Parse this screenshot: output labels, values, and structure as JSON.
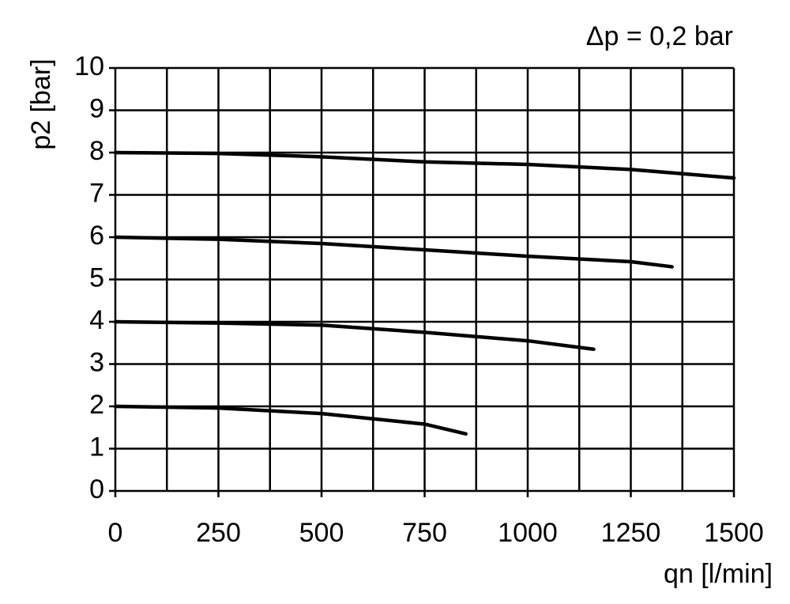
{
  "chart_data": {
    "type": "line",
    "title": "Δp = 0,2 bar",
    "x_label": "qn [l/min]",
    "y_label": "p2 [bar]",
    "xlim": [
      0,
      1500
    ],
    "xticks": [
      0,
      250,
      500,
      750,
      1000,
      1250,
      1500
    ],
    "xgrid_minor": [
      125,
      375,
      625,
      875,
      1125,
      1375
    ],
    "ylim": [
      0,
      10
    ],
    "yticks": [
      0,
      1,
      2,
      3,
      4,
      5,
      6,
      7,
      8,
      9,
      10
    ],
    "grid": true,
    "series": [
      {
        "color": "#000000",
        "x": [
          0,
          250,
          500,
          750,
          1000,
          1250,
          1500
        ],
        "values": [
          8,
          7.98,
          7.9,
          7.78,
          7.72,
          7.6,
          7.4
        ]
      },
      {
        "color": "#000000",
        "x": [
          0,
          250,
          500,
          750,
          1000,
          1250,
          1350
        ],
        "values": [
          6,
          5.95,
          5.85,
          5.7,
          5.55,
          5.42,
          5.3
        ]
      },
      {
        "color": "#000000",
        "x": [
          0,
          250,
          500,
          750,
          1000,
          1160
        ],
        "values": [
          4,
          3.97,
          3.92,
          3.75,
          3.55,
          3.35
        ]
      },
      {
        "color": "#000000",
        "x": [
          0,
          250,
          500,
          750,
          850
        ],
        "values": [
          2,
          1.96,
          1.83,
          1.58,
          1.35
        ]
      }
    ]
  }
}
